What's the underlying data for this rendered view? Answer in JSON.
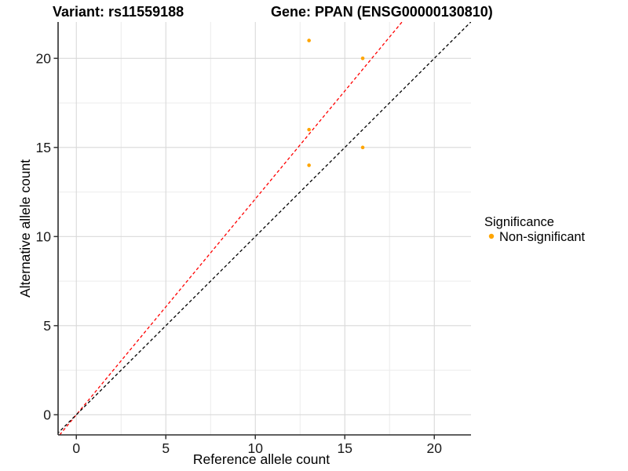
{
  "chart_data": {
    "type": "scatter",
    "title_left": "Variant: rs11559188",
    "title_right": "Gene: PPAN (ENSG00000130810)",
    "xlabel": "Reference allele count",
    "ylabel": "Alternative allele count",
    "xlim": [
      -1.02,
      22.05
    ],
    "ylim": [
      -1.13,
      22.04
    ],
    "x_major_ticks": [
      0,
      5,
      10,
      15,
      20
    ],
    "y_major_ticks": [
      0,
      5,
      10,
      15,
      20
    ],
    "x_minor_gridlines": [
      2.5,
      7.5,
      12.5,
      17.5
    ],
    "y_minor_gridlines": [
      2.5,
      7.5,
      12.5,
      17.5
    ],
    "grid": true,
    "series": [
      {
        "name": "Non-significant",
        "points": [
          {
            "x": 13,
            "y": 21
          },
          {
            "x": 16,
            "y": 20
          },
          {
            "x": 13,
            "y": 16
          },
          {
            "x": 16,
            "y": 15
          },
          {
            "x": 13,
            "y": 14
          }
        ]
      }
    ],
    "lines": [
      {
        "name": "expected-ratio-line",
        "slope": 1.2113,
        "intercept": 0,
        "color": "#ff0000",
        "dash": "4 3"
      },
      {
        "name": "identity-line",
        "slope": 1,
        "intercept": 0,
        "color": "#000000",
        "dash": "4 3"
      }
    ],
    "legend": {
      "title": "Significance",
      "position": "right",
      "entries": [
        {
          "label": "Non-significant",
          "color": "#FFA500"
        }
      ]
    },
    "colors": {
      "point": "#FFA500",
      "grid_major": "#D9D9D9",
      "grid_minor": "#ECECEC",
      "axis_line": "#2b2b2b",
      "tick_mark": "#333333"
    }
  }
}
